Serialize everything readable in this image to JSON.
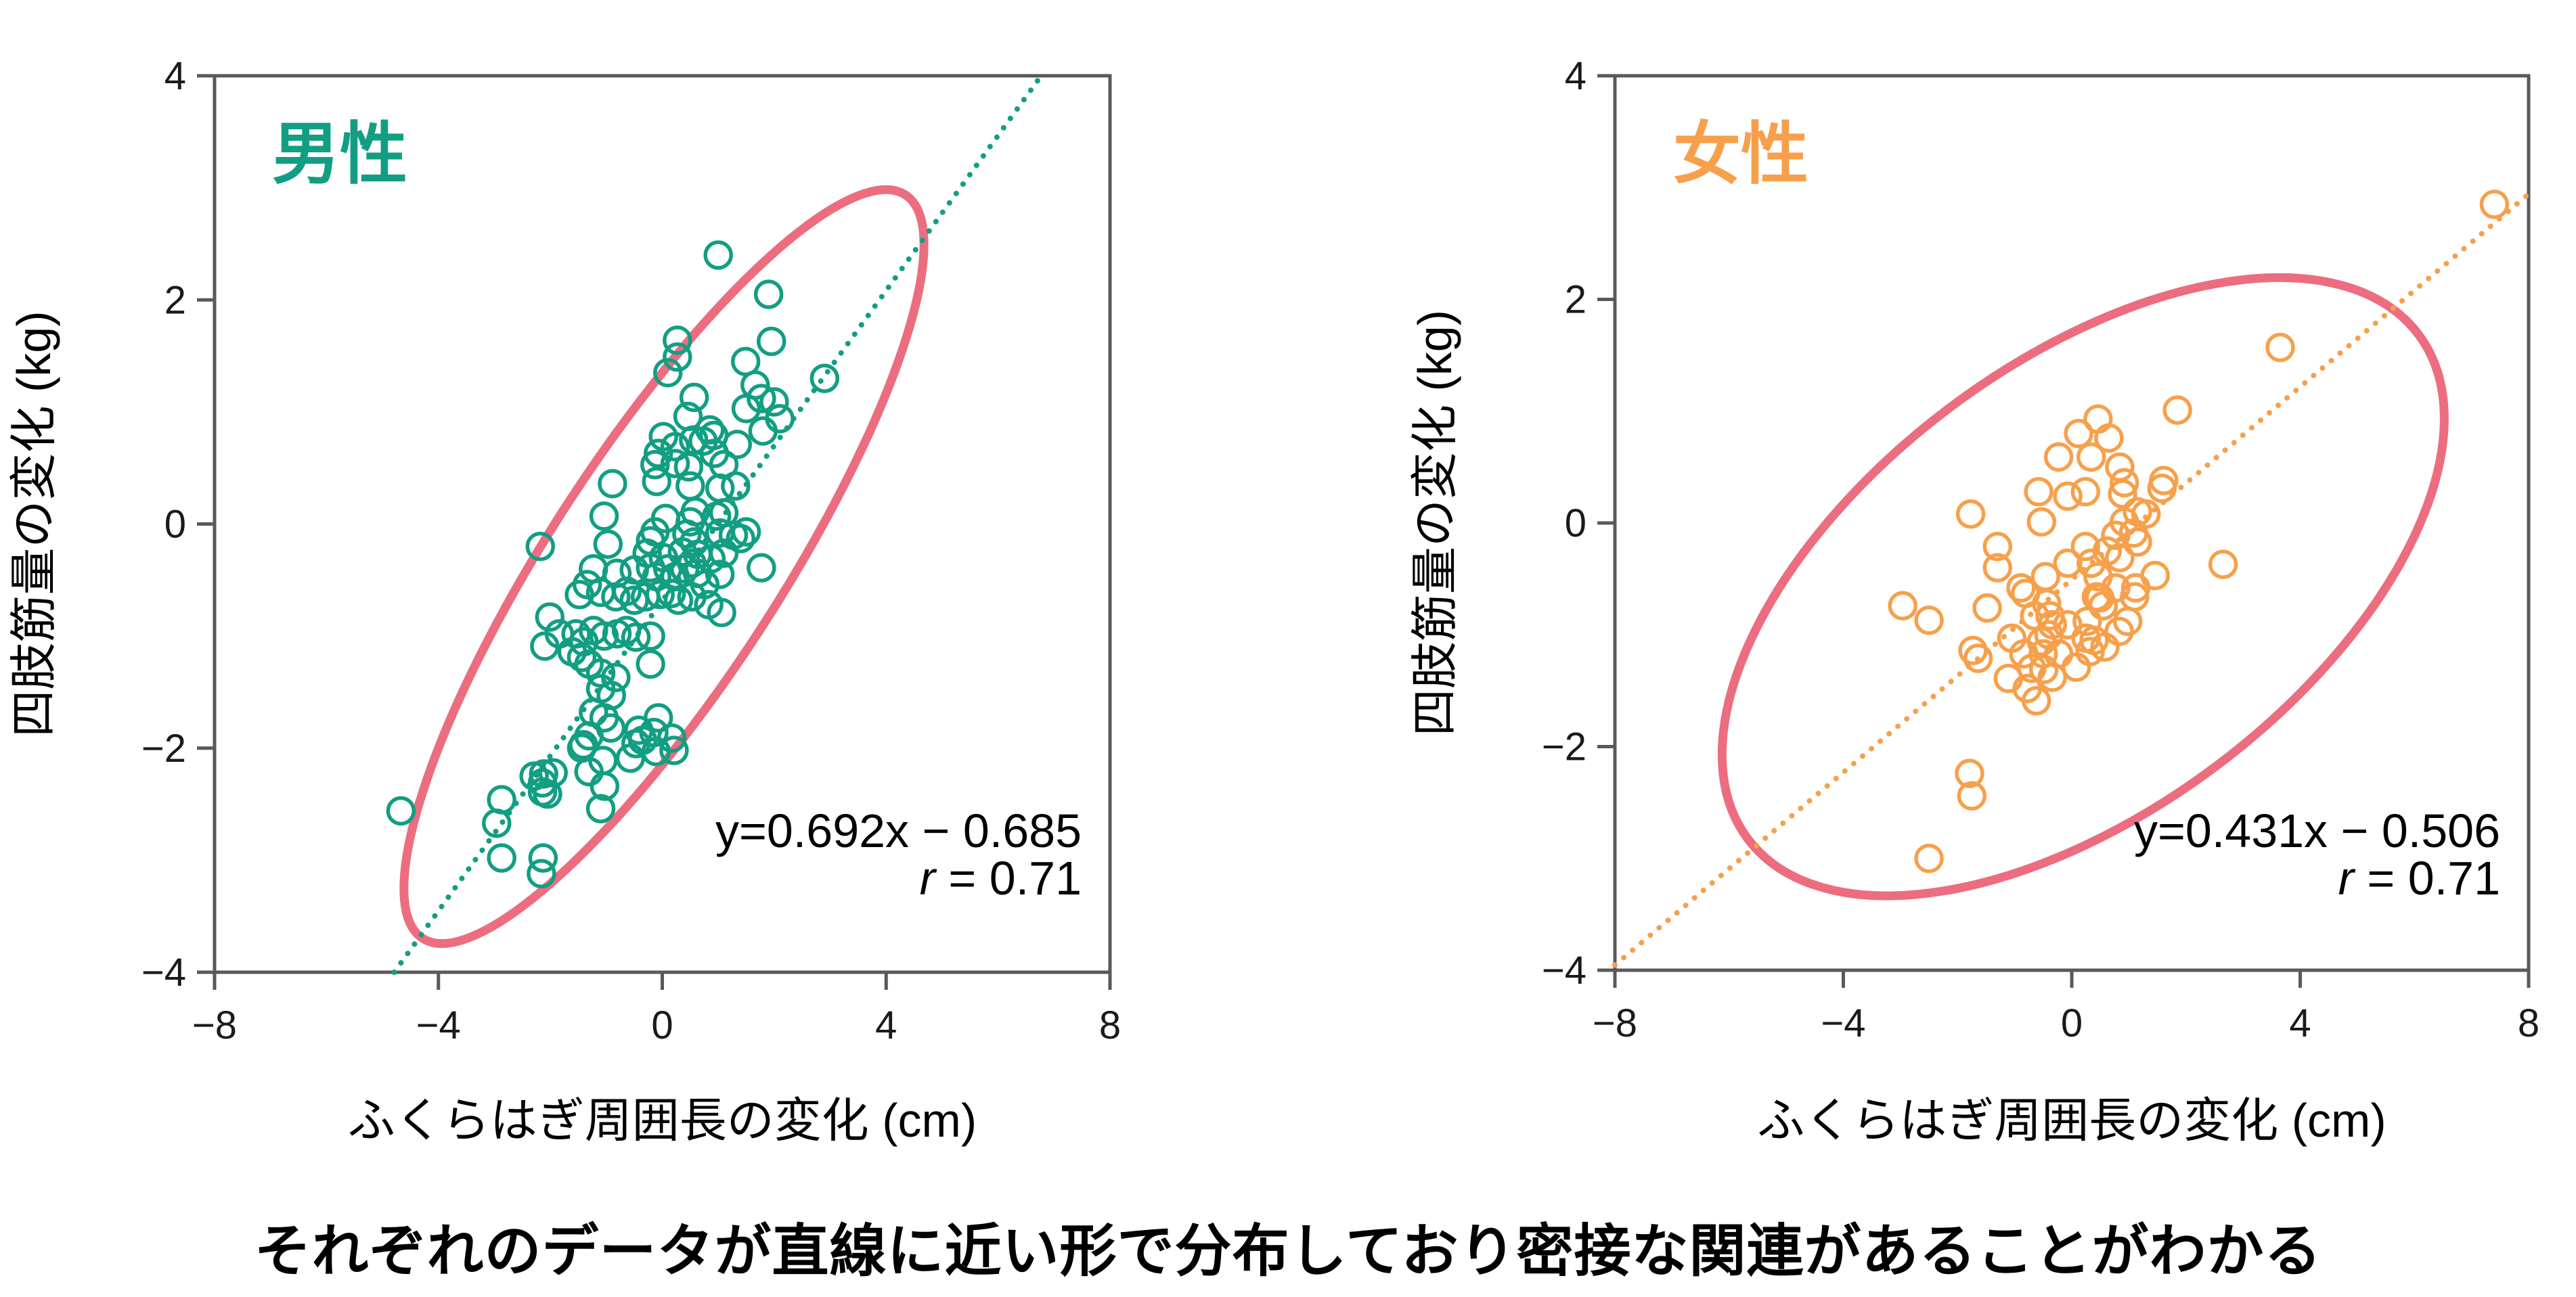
{
  "caption": {
    "text": "それぞれのデータが直線に近い形で分布しており密接な関連があることがわかる"
  },
  "colors": {
    "background": "#ffffff",
    "axis": "#595959",
    "tick_text": "#1a1a1a",
    "label_text": "#000000",
    "male_teal": "#129e83",
    "female_orange": "#f7a04b",
    "ellipse_pink": "#ec6d80"
  },
  "chart_data": [
    {
      "id": "male",
      "type": "scatter",
      "title": "男性",
      "title_color": "#129e83",
      "point_color": "#129e83",
      "ellipse_color": "#ec6d80",
      "xlabel": "ふくらはぎ周囲長の変化 (cm)",
      "ylabel": "四肢筋量の変化 (kg)",
      "equation": "y=0.692x − 0.685",
      "r_label": "r",
      "r_rest": " = 0.71",
      "trend": {
        "slope": 0.692,
        "intercept": -0.685
      },
      "xlim": [
        -8,
        8
      ],
      "ylim": [
        -4,
        4
      ],
      "x_ticks": [
        {
          "v": -8,
          "label": "−8"
        },
        {
          "v": -4,
          "label": "−4"
        },
        {
          "v": 0,
          "label": "0"
        },
        {
          "v": 4,
          "label": "4"
        },
        {
          "v": 8,
          "label": "8"
        }
      ],
      "y_ticks": [
        {
          "v": 4,
          "label": "4"
        },
        {
          "v": 2,
          "label": "2"
        },
        {
          "v": 0,
          "label": "0"
        },
        {
          "v": -2,
          "label": "−2"
        },
        {
          "v": -4,
          "label": "−4"
        }
      ],
      "ellipse": {
        "cx": 0.03,
        "cy": -0.38,
        "rx": 655,
        "ry": 170,
        "angle": -57
      },
      "points": [
        [
          1.0,
          2.4
        ],
        [
          1.9,
          2.05
        ],
        [
          1.95,
          1.63
        ],
        [
          1.49,
          1.45
        ],
        [
          0.27,
          1.64
        ],
        [
          1.66,
          1.24
        ],
        [
          1.77,
          1.12
        ],
        [
          2.9,
          1.3
        ],
        [
          1.5,
          1.03
        ],
        [
          0.57,
          1.13
        ],
        [
          0.46,
          0.96
        ],
        [
          0.27,
          1.49
        ],
        [
          0.1,
          1.35
        ],
        [
          2.0,
          1.09
        ],
        [
          2.1,
          0.94
        ],
        [
          1.8,
          0.83
        ],
        [
          0.02,
          0.78
        ],
        [
          0.23,
          0.69
        ],
        [
          0.56,
          0.75
        ],
        [
          -0.07,
          0.63
        ],
        [
          0.23,
          0.54
        ],
        [
          -0.13,
          0.53
        ],
        [
          0.47,
          0.51
        ],
        [
          0.93,
          0.63
        ],
        [
          1.1,
          0.53
        ],
        [
          -0.89,
          0.36
        ],
        [
          -0.1,
          0.38
        ],
        [
          0.5,
          0.34
        ],
        [
          1.03,
          0.32
        ],
        [
          1.31,
          0.34
        ],
        [
          0.85,
          0.84
        ],
        [
          0.92,
          0.79
        ],
        [
          0.73,
          0.74
        ],
        [
          1.34,
          0.71
        ],
        [
          -1.04,
          0.07
        ],
        [
          0.06,
          0.05
        ],
        [
          0.5,
          0.02
        ],
        [
          0.97,
          0.07
        ],
        [
          1.1,
          0.1
        ],
        [
          0.59,
          0.11
        ],
        [
          -0.13,
          -0.07
        ],
        [
          -0.21,
          -0.15
        ],
        [
          0.44,
          -0.09
        ],
        [
          0.57,
          -0.16
        ],
        [
          1.03,
          -0.08
        ],
        [
          1.27,
          -0.1
        ],
        [
          1.5,
          -0.07
        ],
        [
          1.4,
          -0.13
        ],
        [
          -2.18,
          -0.2
        ],
        [
          -0.97,
          -0.18
        ],
        [
          -0.27,
          -0.26
        ],
        [
          0.02,
          -0.3
        ],
        [
          0.36,
          -0.25
        ],
        [
          0.63,
          -0.27
        ],
        [
          0.87,
          -0.31
        ],
        [
          1.1,
          -0.26
        ],
        [
          0.53,
          -0.35
        ],
        [
          -1.23,
          -0.4
        ],
        [
          -0.81,
          -0.44
        ],
        [
          -0.5,
          -0.41
        ],
        [
          -0.21,
          -0.39
        ],
        [
          -0.1,
          -0.47
        ],
        [
          0.1,
          -0.4
        ],
        [
          0.23,
          -0.47
        ],
        [
          0.4,
          -0.4
        ],
        [
          0.63,
          -0.44
        ],
        [
          0.76,
          -0.54
        ],
        [
          1.03,
          -0.45
        ],
        [
          1.77,
          -0.39
        ],
        [
          -1.34,
          -0.54
        ],
        [
          -1.48,
          -0.63
        ],
        [
          -1.1,
          -0.61
        ],
        [
          -0.83,
          -0.65
        ],
        [
          -0.63,
          -0.6
        ],
        [
          -0.5,
          -0.68
        ],
        [
          -0.3,
          -0.65
        ],
        [
          -0.04,
          -0.63
        ],
        [
          0.16,
          -0.62
        ],
        [
          0.29,
          -0.68
        ],
        [
          0.53,
          -0.65
        ],
        [
          0.83,
          -0.72
        ],
        [
          1.06,
          -0.79
        ],
        [
          -2.01,
          -0.83
        ],
        [
          -1.54,
          -0.98
        ],
        [
          -1.4,
          -1.05
        ],
        [
          -1.23,
          -0.95
        ],
        [
          -1.04,
          -1.0
        ],
        [
          -0.81,
          -0.98
        ],
        [
          -0.64,
          -0.95
        ],
        [
          -0.47,
          -1.01
        ],
        [
          -0.21,
          -1.0
        ],
        [
          -1.84,
          -0.98
        ],
        [
          -2.1,
          -1.09
        ],
        [
          -1.61,
          -1.14
        ],
        [
          -1.44,
          -1.19
        ],
        [
          -1.31,
          -1.25
        ],
        [
          -0.21,
          -1.25
        ],
        [
          -1.1,
          -1.33
        ],
        [
          -0.83,
          -1.37
        ],
        [
          -1.1,
          -1.47
        ],
        [
          -0.91,
          -1.53
        ],
        [
          -1.23,
          -1.68
        ],
        [
          -1.04,
          -1.73
        ],
        [
          -0.07,
          -1.73
        ],
        [
          -0.92,
          -1.82
        ],
        [
          -0.42,
          -1.84
        ],
        [
          -0.35,
          -1.93
        ],
        [
          0.17,
          -1.91
        ],
        [
          0.21,
          -2.02
        ],
        [
          -1.31,
          -1.89
        ],
        [
          -1.41,
          -1.97
        ],
        [
          -1.31,
          -2.21
        ],
        [
          -1.06,
          -2.11
        ],
        [
          -0.57,
          -2.09
        ],
        [
          -1.03,
          -2.34
        ],
        [
          -1.1,
          -2.54
        ],
        [
          -0.15,
          -1.86
        ],
        [
          -0.11,
          -2.03
        ],
        [
          -1.44,
          -2.0
        ],
        [
          -0.47,
          -1.96
        ],
        [
          -2.29,
          -2.25
        ],
        [
          -2.12,
          -2.23
        ],
        [
          -1.95,
          -2.22
        ],
        [
          -2.14,
          -2.31
        ],
        [
          -2.14,
          -2.39
        ],
        [
          -2.05,
          -2.41
        ],
        [
          -4.67,
          -2.56
        ],
        [
          -2.87,
          -2.46
        ],
        [
          -2.96,
          -2.67
        ],
        [
          -2.87,
          -2.98
        ],
        [
          -2.13,
          -2.98
        ],
        [
          -2.16,
          -3.12
        ]
      ]
    },
    {
      "id": "female",
      "type": "scatter",
      "title": "女性",
      "title_color": "#f7a04b",
      "point_color": "#f7a04b",
      "ellipse_color": "#ec6d80",
      "xlabel": "ふくらはぎ周囲長の変化 (cm)",
      "ylabel": "四肢筋量の変化 (kg)",
      "equation": "y=0.431x − 0.506",
      "r_label": "r",
      "r_rest": " = 0.71",
      "trend": {
        "slope": 0.431,
        "intercept": -0.506
      },
      "xlim": [
        -8,
        8
      ],
      "ylim": [
        -4,
        4
      ],
      "x_ticks": [
        {
          "v": -8,
          "label": "−8"
        },
        {
          "v": -4,
          "label": "−4"
        },
        {
          "v": 0,
          "label": "0"
        },
        {
          "v": 4,
          "label": "4"
        },
        {
          "v": 8,
          "label": "8"
        }
      ],
      "y_ticks": [
        {
          "v": 4,
          "label": "4"
        },
        {
          "v": 2,
          "label": "2"
        },
        {
          "v": 0,
          "label": "0"
        },
        {
          "v": -2,
          "label": "−2"
        },
        {
          "v": -4,
          "label": "−4"
        }
      ],
      "ellipse": {
        "cx": 0.2,
        "cy": -0.57,
        "rx": 620,
        "ry": 330,
        "angle": -37
      },
      "points": [
        [
          7.4,
          2.85
        ],
        [
          3.65,
          1.57
        ],
        [
          1.85,
          1.01
        ],
        [
          0.46,
          0.93
        ],
        [
          0.12,
          0.8
        ],
        [
          0.65,
          0.76
        ],
        [
          -0.23,
          0.59
        ],
        [
          0.34,
          0.59
        ],
        [
          0.84,
          0.5
        ],
        [
          -0.58,
          0.28
        ],
        [
          -0.07,
          0.24
        ],
        [
          0.24,
          0.28
        ],
        [
          0.92,
          0.36
        ],
        [
          0.89,
          0.26
        ],
        [
          1.61,
          0.38
        ],
        [
          1.58,
          0.31
        ],
        [
          -1.77,
          0.08
        ],
        [
          -0.53,
          0.01
        ],
        [
          -1.3,
          -0.21
        ],
        [
          -1.3,
          -0.4
        ],
        [
          -0.89,
          -0.58
        ],
        [
          -0.46,
          -0.48
        ],
        [
          -0.07,
          -0.36
        ],
        [
          0.24,
          -0.21
        ],
        [
          0.34,
          -0.36
        ],
        [
          0.62,
          -0.25
        ],
        [
          0.77,
          -0.11
        ],
        [
          0.92,
          0.01
        ],
        [
          1.15,
          0.1
        ],
        [
          1.3,
          0.08
        ],
        [
          1.08,
          -0.09
        ],
        [
          1.15,
          -0.17
        ],
        [
          0.84,
          -0.31
        ],
        [
          0.46,
          -0.48
        ],
        [
          0.77,
          -0.58
        ],
        [
          1.12,
          -0.58
        ],
        [
          1.46,
          -0.47
        ],
        [
          2.65,
          -0.37
        ],
        [
          0.43,
          -0.66
        ],
        [
          -0.38,
          -0.83
        ],
        [
          -0.07,
          -0.91
        ],
        [
          0.27,
          -0.88
        ],
        [
          -0.53,
          -1.06
        ],
        [
          -0.84,
          -1.17
        ],
        [
          -0.23,
          -1.17
        ],
        [
          0.08,
          -1.29
        ],
        [
          -2.96,
          -0.74
        ],
        [
          -2.5,
          -0.87
        ],
        [
          -1.48,
          -0.76
        ],
        [
          -1.73,
          -1.14
        ],
        [
          -1.64,
          -1.21
        ],
        [
          -1.05,
          -1.03
        ],
        [
          -1.11,
          -1.39
        ],
        [
          -0.81,
          -0.63
        ],
        [
          -0.65,
          -0.83
        ],
        [
          -0.44,
          -0.72
        ],
        [
          -0.34,
          -0.91
        ],
        [
          -0.4,
          -1.0
        ],
        [
          -0.5,
          -1.17
        ],
        [
          -0.34,
          -1.38
        ],
        [
          -0.62,
          -1.59
        ],
        [
          0.49,
          -0.67
        ],
        [
          0.55,
          -0.74
        ],
        [
          0.39,
          -1.05
        ],
        [
          0.58,
          -1.11
        ],
        [
          0.98,
          -0.88
        ],
        [
          1.1,
          -0.66
        ],
        [
          -0.7,
          -1.3
        ],
        [
          -0.49,
          -1.31
        ],
        [
          -0.78,
          -1.48
        ],
        [
          0.25,
          -1.03
        ],
        [
          0.32,
          -1.15
        ],
        [
          0.83,
          -0.97
        ],
        [
          -1.79,
          -2.24
        ],
        [
          -1.75,
          -2.44
        ],
        [
          -2.5,
          -3.0
        ]
      ]
    }
  ]
}
